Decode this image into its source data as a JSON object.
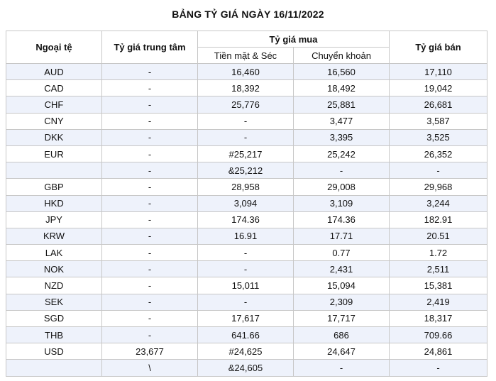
{
  "title": "BẢNG TỶ GIÁ NGÀY 16/11/2022",
  "headers": {
    "currency": "Ngoại tệ",
    "central_rate": "Tỷ giá trung tâm",
    "buy_rate": "Tỷ giá mua",
    "cash_cheque": "Tiền mặt & Séc",
    "transfer": "Chuyển khoản",
    "sell_rate": "Tỷ giá bán"
  },
  "rows": [
    [
      "AUD",
      "-",
      "16,460",
      "16,560",
      "17,110"
    ],
    [
      "CAD",
      "-",
      "18,392",
      "18,492",
      "19,042"
    ],
    [
      "CHF",
      "-",
      "25,776",
      "25,881",
      "26,681"
    ],
    [
      "CNY",
      "-",
      "-",
      "3,477",
      "3,587"
    ],
    [
      "DKK",
      "-",
      "-",
      "3,395",
      "3,525"
    ],
    [
      "EUR",
      "-",
      "#25,217",
      "25,242",
      "26,352"
    ],
    [
      "",
      "-",
      "&25,212",
      "-",
      "-"
    ],
    [
      "GBP",
      "-",
      "28,958",
      "29,008",
      "29,968"
    ],
    [
      "HKD",
      "-",
      "3,094",
      "3,109",
      "3,244"
    ],
    [
      "JPY",
      "-",
      "174.36",
      "174.36",
      "182.91"
    ],
    [
      "KRW",
      "-",
      "16.91",
      "17.71",
      "20.51"
    ],
    [
      "LAK",
      "-",
      "-",
      "0.77",
      "1.72"
    ],
    [
      "NOK",
      "-",
      "-",
      "2,431",
      "2,511"
    ],
    [
      "NZD",
      "-",
      "15,011",
      "15,094",
      "15,381"
    ],
    [
      "SEK",
      "-",
      "-",
      "2,309",
      "2,419"
    ],
    [
      "SGD",
      "-",
      "17,617",
      "17,717",
      "18,317"
    ],
    [
      "THB",
      "-",
      "641.66",
      "686",
      "709.66"
    ],
    [
      "USD",
      "23,677",
      "#24,625",
      "24,647",
      "24,861"
    ],
    [
      "",
      "\\",
      "&24,605",
      "-",
      "-"
    ]
  ]
}
